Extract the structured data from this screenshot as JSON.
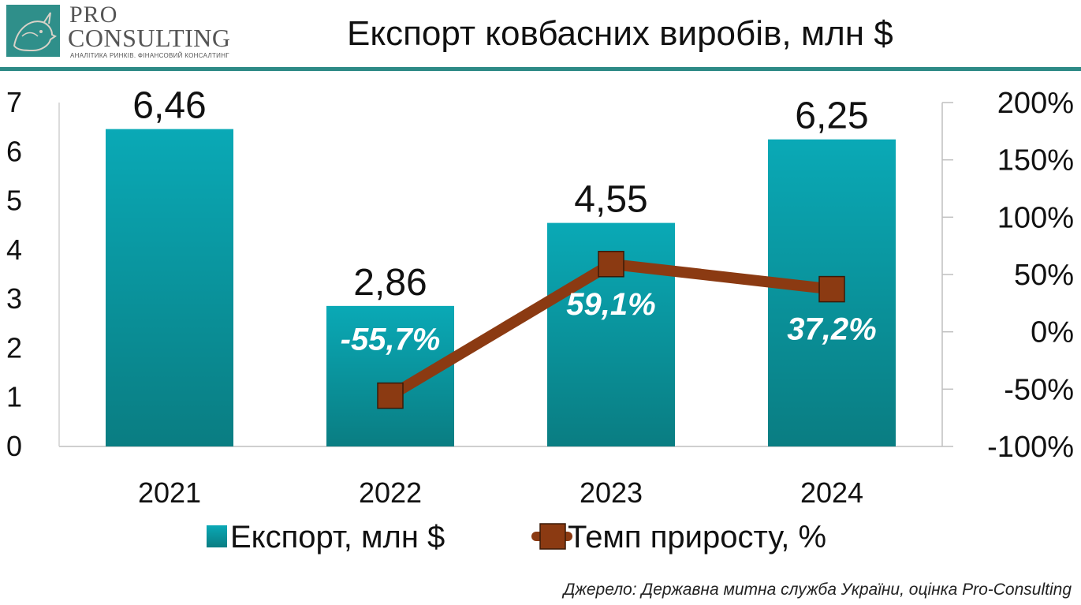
{
  "header": {
    "logo_pro": "PRO",
    "logo_consulting": "CONSULTING",
    "logo_tagline": "АНАЛІТИКА РИНКІВ. ФІНАНСОВИЙ КОНСАЛТИНГ",
    "title": "Експорт ковбасних виробів, млн $"
  },
  "source": "Джерело:  Державна митна служба України, оцінка Pro-Consulting",
  "colors": {
    "bar_top": "#0aa9b6",
    "bar_bottom": "#0a7d82",
    "line": "#8b3a12",
    "marker": "#8b3a12",
    "accent": "#2d8a86"
  },
  "chart_data": {
    "type": "bar",
    "title": "Експорт ковбасних виробів, млн $",
    "categories": [
      "2021",
      "2022",
      "2023",
      "2024"
    ],
    "series": [
      {
        "name": "Експорт, млн $",
        "type": "bar",
        "axis": "left",
        "values": [
          6.46,
          2.86,
          4.55,
          6.25
        ],
        "labels": [
          "6,46",
          "2,86",
          "4,55",
          "6,25"
        ]
      },
      {
        "name": "Темп приросту, %",
        "type": "line",
        "axis": "right",
        "values": [
          null,
          -55.7,
          59.1,
          37.2
        ],
        "labels": [
          "",
          "-55,7%",
          "59,1%",
          "37,2%"
        ]
      }
    ],
    "y_left": {
      "min": 0,
      "max": 7,
      "ticks": [
        "0",
        "1",
        "2",
        "3",
        "4",
        "5",
        "6",
        "7"
      ]
    },
    "y_right": {
      "min": -100,
      "max": 200,
      "ticks": [
        "-100%",
        "-50%",
        "0%",
        "50%",
        "100%",
        "150%",
        "200%"
      ]
    },
    "legend": [
      "Експорт, млн $",
      "Темп приросту, %"
    ],
    "legend_position": "bottom",
    "grid": false
  }
}
